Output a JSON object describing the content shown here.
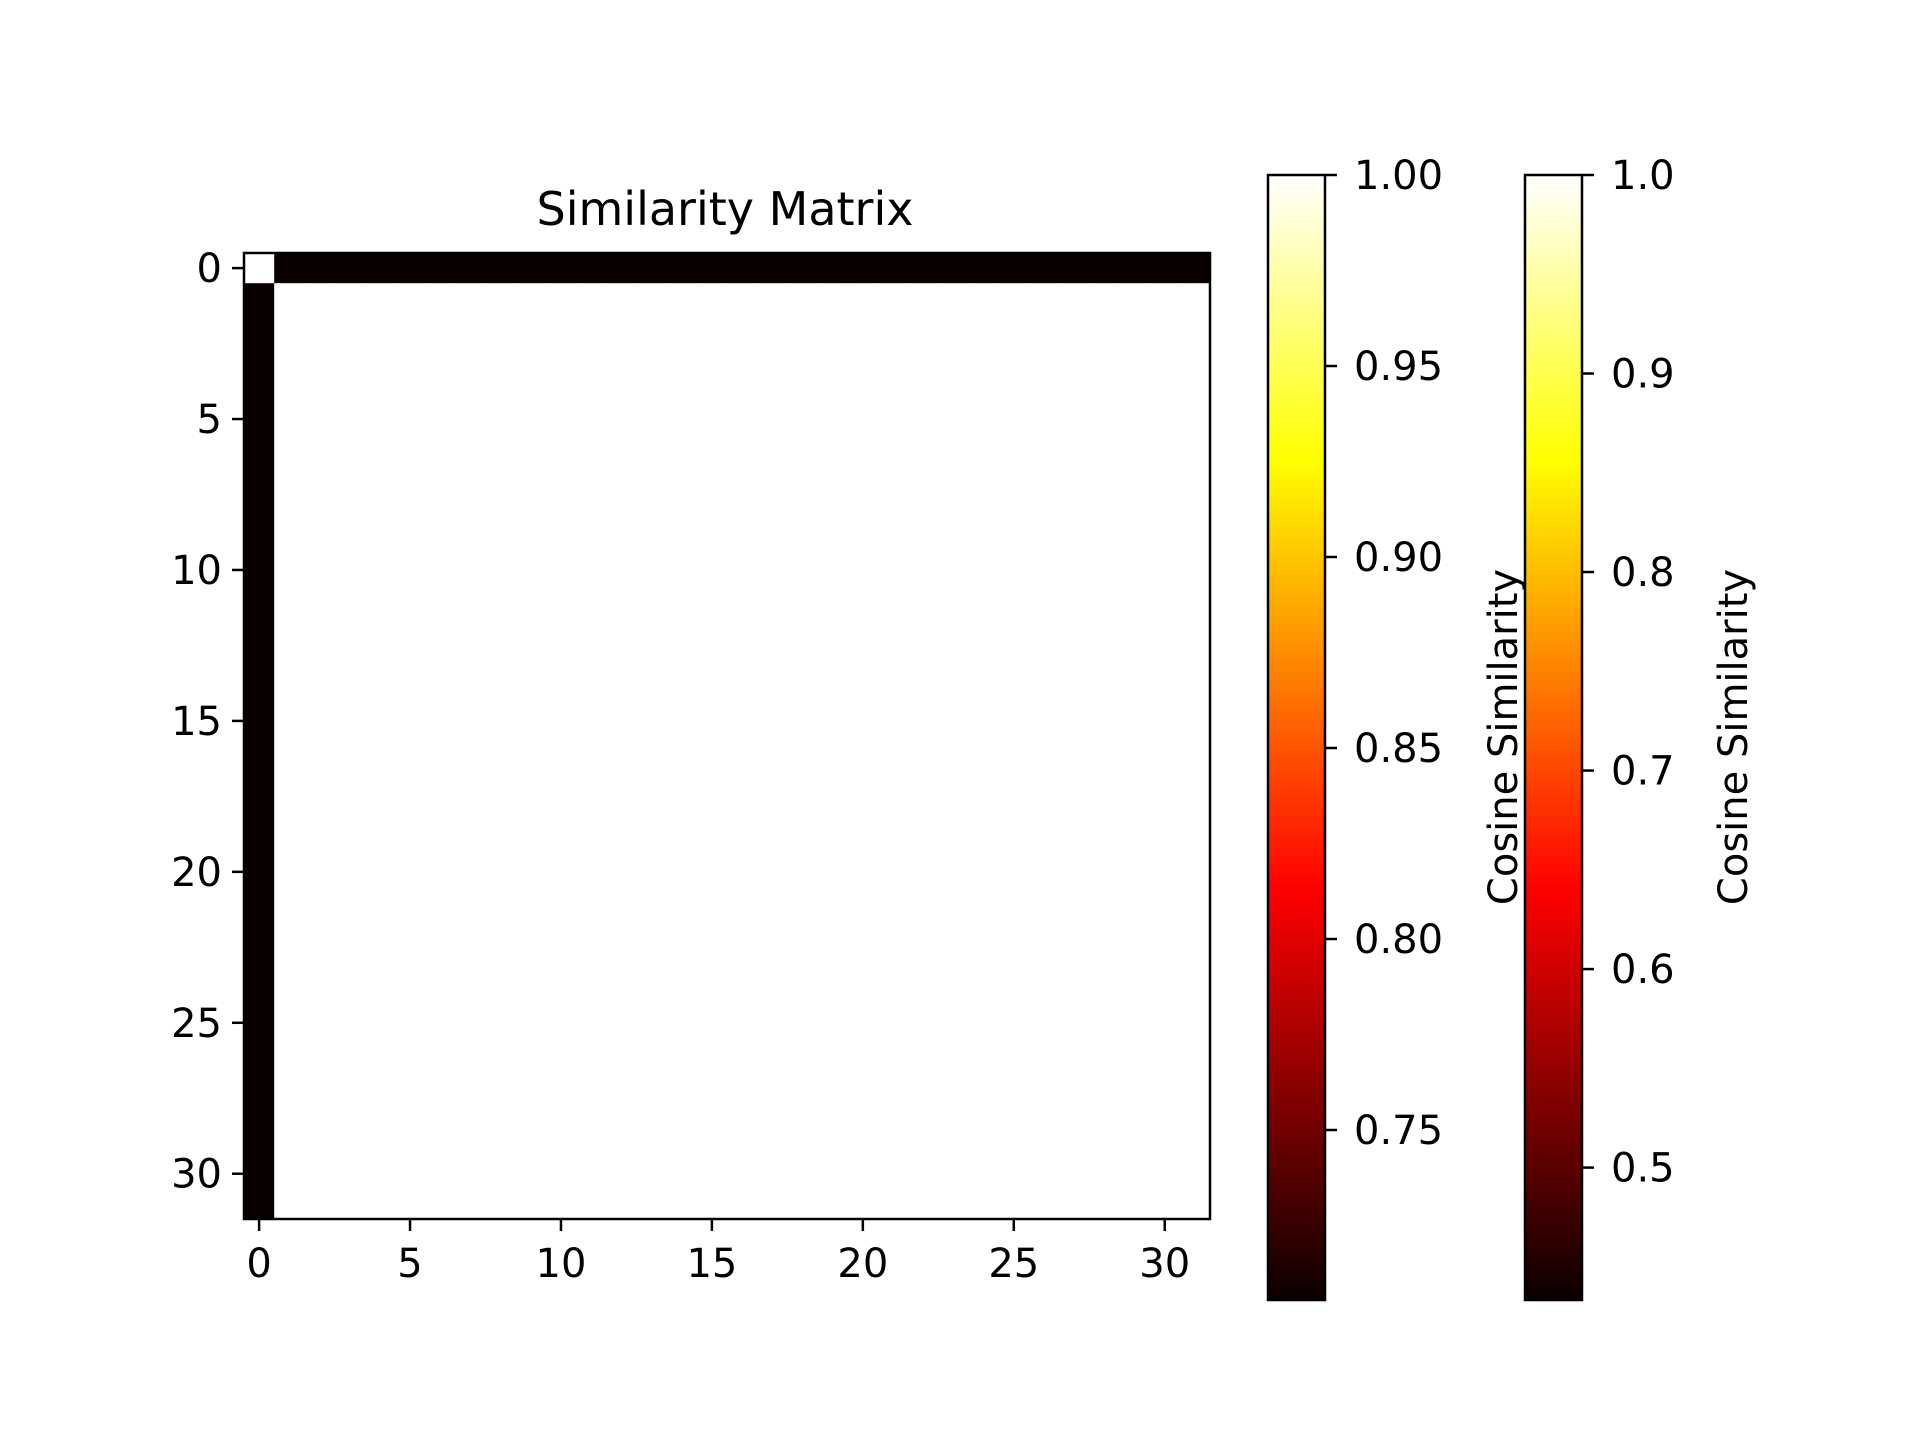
{
  "chart_data": {
    "type": "heatmap",
    "title": "Similarity Matrix",
    "rows": 32,
    "cols": 32,
    "x_ticks": [
      0,
      5,
      10,
      15,
      20,
      25,
      30
    ],
    "y_ticks": [
      0,
      5,
      10,
      15,
      20,
      25,
      30
    ],
    "colormap": "hot",
    "cell_rule": {
      "diagonal_origin": 1.0,
      "first_row_and_first_column": 0.0,
      "rest": 1.0
    },
    "colorbars": [
      {
        "label": "Cosine Similarity",
        "range": [
          0.7055,
          1.0
        ],
        "ticks": [
          0.75,
          0.8,
          0.85,
          0.9,
          0.95,
          1.0
        ],
        "tick_labels": [
          "0.75",
          "0.80",
          "0.85",
          "0.90",
          "0.95",
          "1.00"
        ]
      },
      {
        "label": "Cosine Similarity",
        "range": [
          0.4333,
          1.0
        ],
        "ticks": [
          0.5,
          0.6,
          0.7,
          0.8,
          0.9,
          1.0
        ],
        "tick_labels": [
          "0.5",
          "0.6",
          "0.7",
          "0.8",
          "0.9",
          "1.0"
        ]
      }
    ]
  },
  "colors": {
    "hot_dark": "#0b0000",
    "hot_red": "#ff0000",
    "hot_yellow": "#ffff00",
    "hot_white": "#ffffff"
  }
}
